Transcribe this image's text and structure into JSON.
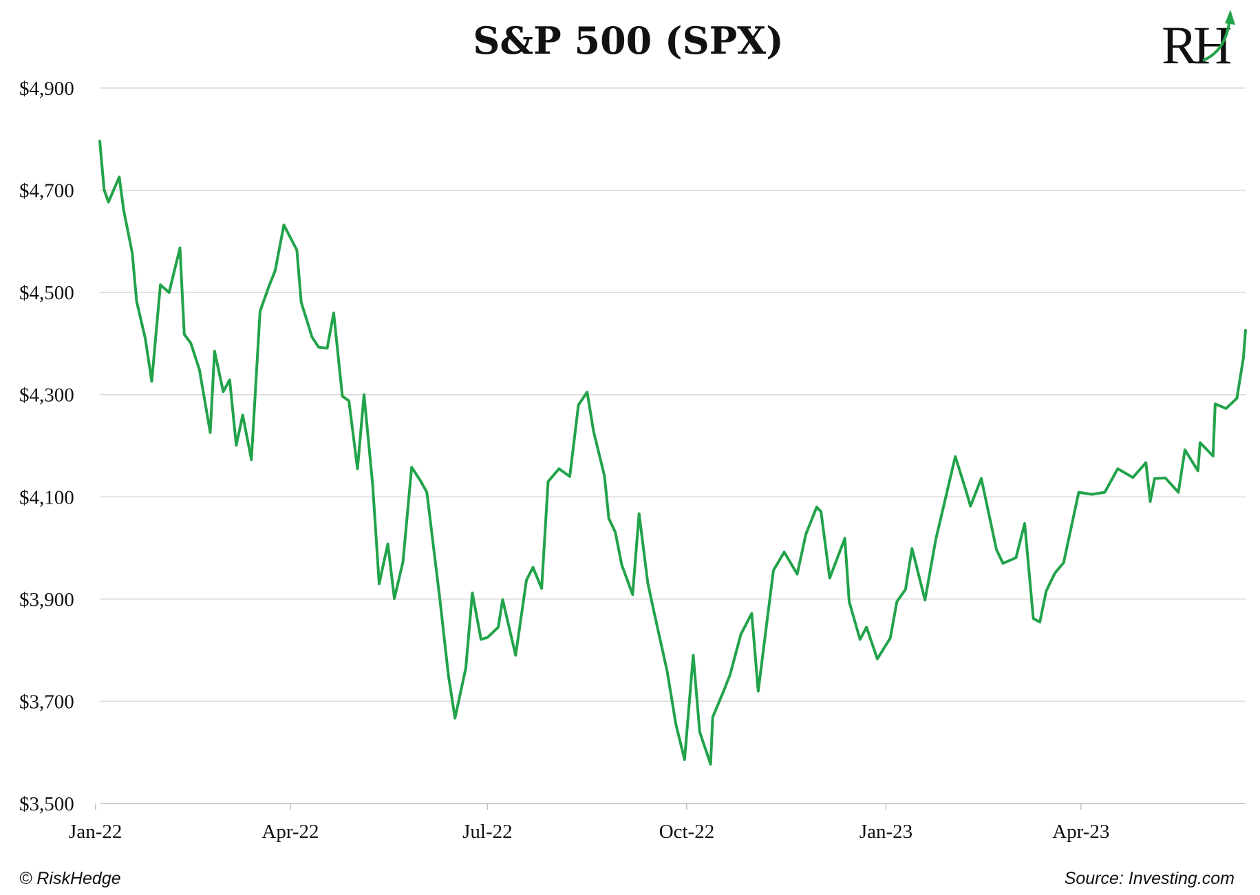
{
  "chart_data": {
    "type": "line",
    "title": "S&P 500 (SPX)",
    "xlabel": "",
    "ylabel": "",
    "ylim": [
      3500,
      4900
    ],
    "y_ticks": [
      3500,
      3700,
      3900,
      4100,
      4300,
      4500,
      4700,
      4900
    ],
    "y_tick_labels": [
      "$3,500",
      "$3,700",
      "$3,900",
      "$4,100",
      "$4,300",
      "$4,500",
      "$4,700",
      "$4,900"
    ],
    "x_range": [
      "2022-01-03",
      "2023-06-16"
    ],
    "x_ticks": [
      "2022-01-01",
      "2022-04-01",
      "2022-07-01",
      "2022-10-01",
      "2023-01-01",
      "2023-04-01"
    ],
    "x_tick_labels": [
      "Jan-22",
      "Apr-22",
      "Jul-22",
      "Oct-22",
      "Jan-23",
      "Apr-23"
    ],
    "grid": "horizontal",
    "line_color": "#22a34a",
    "series": [
      {
        "x": [
          "2022-01-03",
          "2022-01-05",
          "2022-01-07",
          "2022-01-12",
          "2022-01-14",
          "2022-01-18",
          "2022-01-20",
          "2022-01-24",
          "2022-01-27",
          "2022-01-31",
          "2022-02-04",
          "2022-02-09",
          "2022-02-11",
          "2022-02-14",
          "2022-02-18",
          "2022-02-23",
          "2022-02-25",
          "2022-03-01",
          "2022-03-04",
          "2022-03-07",
          "2022-03-10",
          "2022-03-14",
          "2022-03-18",
          "2022-03-22",
          "2022-03-25",
          "2022-03-29",
          "2022-04-04",
          "2022-04-06",
          "2022-04-11",
          "2022-04-14",
          "2022-04-18",
          "2022-04-21",
          "2022-04-25",
          "2022-04-28",
          "2022-05-02",
          "2022-05-05",
          "2022-05-09",
          "2022-05-12",
          "2022-05-16",
          "2022-05-19",
          "2022-05-23",
          "2022-05-27",
          "2022-05-31",
          "2022-06-03",
          "2022-06-09",
          "2022-06-13",
          "2022-06-16",
          "2022-06-21",
          "2022-06-24",
          "2022-06-28",
          "2022-07-01",
          "2022-07-06",
          "2022-07-08",
          "2022-07-14",
          "2022-07-19",
          "2022-07-22",
          "2022-07-26",
          "2022-07-29",
          "2022-08-03",
          "2022-08-08",
          "2022-08-12",
          "2022-08-16",
          "2022-08-19",
          "2022-08-24",
          "2022-08-26",
          "2022-08-29",
          "2022-09-01",
          "2022-09-06",
          "2022-09-09",
          "2022-09-13",
          "2022-09-16",
          "2022-09-22",
          "2022-09-26",
          "2022-09-30",
          "2022-10-04",
          "2022-10-07",
          "2022-10-12",
          "2022-10-13",
          "2022-10-18",
          "2022-10-21",
          "2022-10-26",
          "2022-10-31",
          "2022-11-03",
          "2022-11-10",
          "2022-11-15",
          "2022-11-21",
          "2022-11-25",
          "2022-11-30",
          "2022-12-02",
          "2022-12-06",
          "2022-12-13",
          "2022-12-15",
          "2022-12-20",
          "2022-12-23",
          "2022-12-28",
          "2023-01-03",
          "2023-01-06",
          "2023-01-10",
          "2023-01-13",
          "2023-01-19",
          "2023-01-24",
          "2023-01-27",
          "2023-02-02",
          "2023-02-07",
          "2023-02-09",
          "2023-02-14",
          "2023-02-21",
          "2023-02-24",
          "2023-03-02",
          "2023-03-06",
          "2023-03-10",
          "2023-03-13",
          "2023-03-16",
          "2023-03-20",
          "2023-03-24",
          "2023-03-31",
          "2023-04-06",
          "2023-04-12",
          "2023-04-18",
          "2023-04-25",
          "2023-05-01",
          "2023-05-03",
          "2023-05-05",
          "2023-05-10",
          "2023-05-16",
          "2023-05-19",
          "2023-05-25",
          "2023-05-26",
          "2023-06-01",
          "2023-06-02",
          "2023-06-07",
          "2023-06-12",
          "2023-06-15",
          "2023-06-16"
        ],
        "values": [
          4796,
          4701,
          4677,
          4726,
          4662,
          4577,
          4483,
          4410,
          4326,
          4515,
          4500,
          4587,
          4418,
          4401,
          4349,
          4226,
          4385,
          4306,
          4329,
          4201,
          4260,
          4173,
          4463,
          4511,
          4543,
          4632,
          4583,
          4481,
          4413,
          4393,
          4391,
          4460,
          4297,
          4288,
          4155,
          4300,
          4123,
          3930,
          4008,
          3901,
          3973,
          4158,
          4132,
          4109,
          3901,
          3750,
          3667,
          3765,
          3912,
          3821,
          3825,
          3845,
          3899,
          3790,
          3937,
          3962,
          3921,
          4130,
          4155,
          4140,
          4280,
          4305,
          4228,
          4141,
          4058,
          4031,
          3967,
          3909,
          4067,
          3932,
          3873,
          3758,
          3655,
          3586,
          3790,
          3640,
          3577,
          3669,
          3720,
          3752,
          3831,
          3872,
          3720,
          3956,
          3992,
          3949,
          4027,
          4080,
          4071,
          3941,
          4019,
          3895,
          3821,
          3845,
          3783,
          3824,
          3895,
          3919,
          3999,
          3898,
          4017,
          4071,
          4179,
          4111,
          4082,
          4136,
          3997,
          3970,
          3981,
          4048,
          3862,
          3855,
          3916,
          3951,
          3971,
          4109,
          4105,
          4109,
          4155,
          4138,
          4167,
          4091,
          4136,
          4137,
          4109,
          4192,
          4151,
          4206,
          4180,
          4282,
          4273,
          4293,
          4372,
          4426
        ]
      }
    ]
  },
  "footer": {
    "copyright": "© RiskHedge",
    "source": "Source: Investing.com"
  },
  "logo": {
    "text": "RH",
    "accent_color": "#22a34a"
  }
}
